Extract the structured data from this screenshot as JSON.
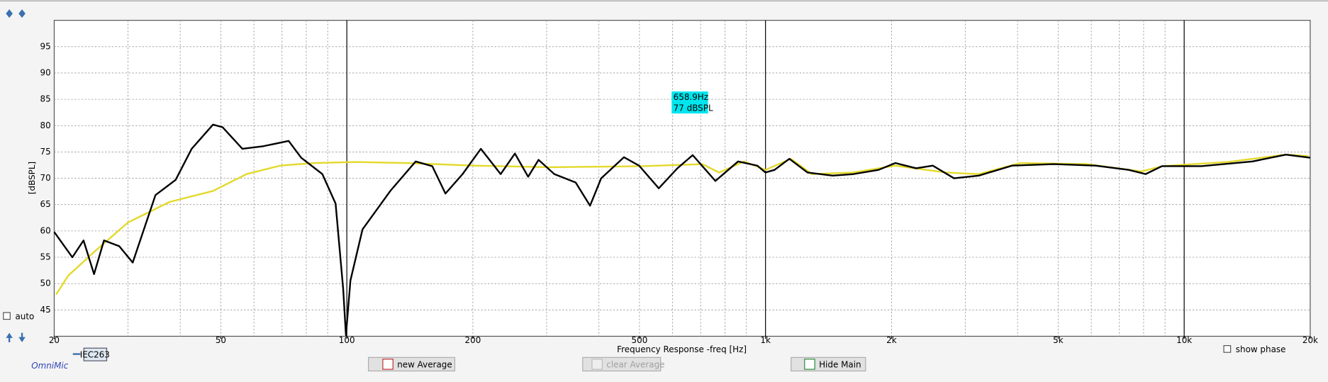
{
  "chart_data": {
    "type": "line",
    "x_label": "Frequency Response -freq [Hz]",
    "y_label": "[dBSPL]",
    "xscale": "log",
    "xlim": [
      20,
      20000
    ],
    "ylim": [
      40,
      100
    ],
    "xticks": [
      20,
      50,
      100,
      200,
      500,
      {
        "value": 1000,
        "label": "1k"
      },
      {
        "value": 2000,
        "label": "2k"
      },
      {
        "value": 5000,
        "label": "5k"
      },
      {
        "value": 10000,
        "label": "10k"
      },
      {
        "value": 20000,
        "label": "20k"
      }
    ],
    "x_major_grid": [
      100,
      1000,
      10000
    ],
    "x_minor_grid": [
      30,
      40,
      50,
      60,
      70,
      80,
      90,
      200,
      300,
      400,
      500,
      600,
      700,
      800,
      900,
      2000,
      3000,
      4000,
      5000,
      6000,
      7000,
      8000,
      9000
    ],
    "yticks": [
      45,
      50,
      55,
      60,
      65,
      70,
      75,
      80,
      85,
      90,
      95
    ],
    "grid": true,
    "series": [
      {
        "color": "#e3d92a",
        "x": [
          20.2,
          21.6,
          24.9,
          30,
          37.7,
          47.9,
          57.6,
          69.3,
          83.3,
          105,
          139,
          202,
          306,
          510,
          706,
          775,
          889,
          1000,
          1150,
          1290,
          1620,
          2040,
          2700,
          3230,
          4060,
          5850,
          7910,
          8850,
          12700,
          17500,
          19800
        ],
        "values": [
          47.9,
          51.5,
          56,
          61.6,
          65.5,
          67.6,
          70.8,
          72.4,
          72.9,
          73.1,
          72.9,
          72.4,
          72.1,
          72.3,
          72.7,
          71.1,
          73.2,
          71.6,
          73.7,
          70.8,
          71.1,
          72.4,
          71.1,
          70.8,
          72.9,
          72.7,
          71.3,
          72.3,
          73.1,
          74.5,
          74.2
        ]
      },
      {
        "color": "#000000",
        "x": [
          20,
          22.1,
          23.5,
          24.9,
          26.3,
          28.6,
          30.8,
          34.9,
          39,
          42.6,
          47.9,
          50.5,
          56.3,
          63.2,
          66.8,
          72.6,
          77.8,
          87.4,
          94,
          98,
          99.5,
          102,
          109,
          127,
          146,
          160,
          172,
          189,
          209,
          233,
          252,
          271,
          287,
          313,
          352,
          381,
          405,
          459,
          499,
          556,
          616,
          670,
          759,
          860,
          956,
          1000,
          1051,
          1140,
          1260,
          1447,
          1622,
          1862,
          2043,
          2290,
          2510,
          2820,
          3230,
          3880,
          4880,
          6140,
          7370,
          8090,
          8850,
          11000,
          14560,
          17500,
          20000
        ],
        "values": [
          59.8,
          55,
          58.2,
          51.8,
          58.2,
          57.1,
          54,
          66.8,
          69.7,
          75.6,
          80.2,
          79.7,
          75.6,
          76.1,
          76.5,
          77.1,
          73.9,
          70.8,
          65.2,
          49,
          40.2,
          50.6,
          60.3,
          67.6,
          73.2,
          72.3,
          67.1,
          70.8,
          75.6,
          70.8,
          74.7,
          70.3,
          73.5,
          70.8,
          69.2,
          64.8,
          70,
          74,
          72.4,
          68.1,
          71.9,
          74.4,
          69.5,
          73.2,
          72.4,
          71.1,
          71.6,
          73.7,
          71.1,
          70.5,
          70.8,
          71.6,
          72.9,
          71.9,
          72.4,
          70,
          70.5,
          72.4,
          72.7,
          72.4,
          71.6,
          70.8,
          72.3,
          72.3,
          73.2,
          74.5,
          73.9
        ]
      }
    ],
    "cursor_label": [
      "658.9Hz",
      "77 dBSPL"
    ]
  },
  "ui": {
    "auto": "auto",
    "show_phase": "show phase",
    "brand": "OmniMic",
    "mic": "IEC263",
    "buttons": [
      "new Average",
      "clear Average",
      "Hide Main"
    ]
  }
}
